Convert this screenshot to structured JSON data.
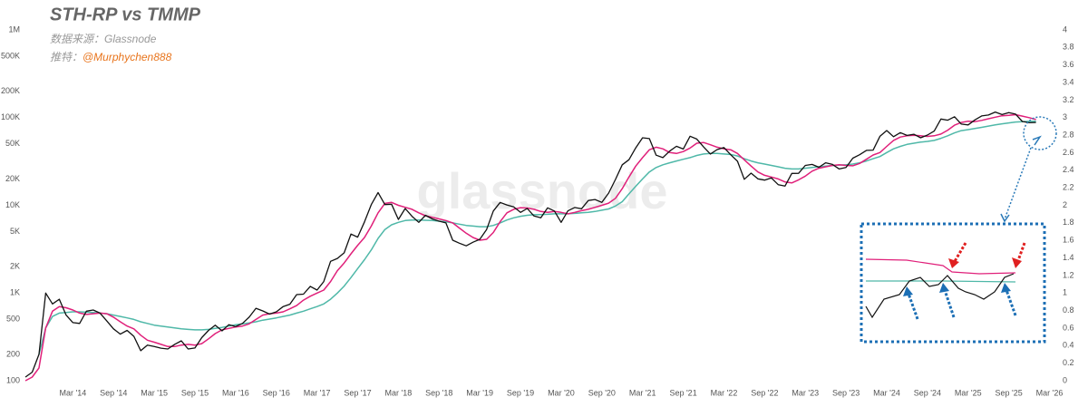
{
  "chart_data": {
    "type": "line",
    "title": "STH-RP vs TMMP",
    "annotations": [
      "数据来源：Glassnode",
      "推特：",
      "@Murphychen888",
      "glassnode"
    ],
    "log": true,
    "grid": false,
    "x": [
      "2013-08",
      "2013-09",
      "2013-10",
      "2013-11",
      "2013-12",
      "2014-01",
      "2014-02",
      "2014-03",
      "2014-04",
      "2014-05",
      "2014-06",
      "2014-07",
      "2014-08",
      "2014-09",
      "2014-10",
      "2014-11",
      "2014-12",
      "2015-01",
      "2015-02",
      "2015-03",
      "2015-04",
      "2015-05",
      "2015-06",
      "2015-07",
      "2015-08",
      "2015-09",
      "2015-10",
      "2015-11",
      "2015-12",
      "2016-01",
      "2016-02",
      "2016-03",
      "2016-04",
      "2016-05",
      "2016-06",
      "2016-07",
      "2016-08",
      "2016-09",
      "2016-10",
      "2016-11",
      "2016-12",
      "2017-01",
      "2017-02",
      "2017-03",
      "2017-04",
      "2017-05",
      "2017-06",
      "2017-07",
      "2017-08",
      "2017-09",
      "2017-10",
      "2017-11",
      "2017-12",
      "2018-01",
      "2018-02",
      "2018-03",
      "2018-04",
      "2018-05",
      "2018-06",
      "2018-07",
      "2018-08",
      "2018-09",
      "2018-10",
      "2018-11",
      "2018-12",
      "2019-01",
      "2019-02",
      "2019-03",
      "2019-04",
      "2019-05",
      "2019-06",
      "2019-07",
      "2019-08",
      "2019-09",
      "2019-10",
      "2019-11",
      "2019-12",
      "2020-01",
      "2020-02",
      "2020-03",
      "2020-04",
      "2020-05",
      "2020-06",
      "2020-07",
      "2020-08",
      "2020-09",
      "2020-10",
      "2020-11",
      "2020-12",
      "2021-01",
      "2021-02",
      "2021-03",
      "2021-04",
      "2021-05",
      "2021-06",
      "2021-07",
      "2021-08",
      "2021-09",
      "2021-10",
      "2021-11",
      "2021-12",
      "2022-01",
      "2022-02",
      "2022-03",
      "2022-04",
      "2022-05",
      "2022-06",
      "2022-07",
      "2022-08",
      "2022-09",
      "2022-10",
      "2022-11",
      "2022-12",
      "2023-01",
      "2023-02",
      "2023-03",
      "2023-04",
      "2023-05",
      "2023-06",
      "2023-07",
      "2023-08",
      "2023-09",
      "2023-10",
      "2023-11",
      "2023-12",
      "2024-01",
      "2024-02",
      "2024-03",
      "2024-04",
      "2024-05",
      "2024-06",
      "2024-07",
      "2024-08",
      "2024-09",
      "2024-10",
      "2024-11",
      "2024-12",
      "2025-01",
      "2025-02",
      "2025-03",
      "2025-04",
      "2025-05",
      "2025-06",
      "2025-07",
      "2025-08",
      "2025-09",
      "2025-10",
      "2025-11",
      "2025-12",
      "2026-01"
    ],
    "series": [
      {
        "color": "#4fb8a8",
        "values": [
          null,
          null,
          200,
          400,
          540,
          590,
          600,
          610,
          610,
          605,
          600,
          590,
          580,
          560,
          540,
          520,
          500,
          470,
          450,
          430,
          420,
          410,
          400,
          390,
          385,
          380,
          380,
          385,
          395,
          405,
          420,
          435,
          445,
          455,
          470,
          490,
          505,
          520,
          540,
          560,
          590,
          620,
          660,
          700,
          750,
          850,
          1000,
          1200,
          1500,
          1900,
          2400,
          3100,
          4200,
          5300,
          6000,
          6400,
          6700,
          6800,
          6800,
          6750,
          6700,
          6600,
          6500,
          6300,
          6100,
          5900,
          5800,
          5700,
          5700,
          5900,
          6300,
          6800,
          7200,
          7500,
          7700,
          7800,
          7850,
          7900,
          8000,
          8000,
          8000,
          8100,
          8200,
          8300,
          8500,
          8800,
          9100,
          9800,
          11000,
          13500,
          16500,
          20000,
          24000,
          27000,
          29000,
          30500,
          32000,
          33500,
          35000,
          37000,
          38500,
          39000,
          39000,
          38500,
          38000,
          36500,
          34000,
          32000,
          30500,
          29500,
          28500,
          27500,
          26500,
          26000,
          26000,
          26500,
          27000,
          27500,
          28000,
          28500,
          28800,
          29000,
          29500,
          30500,
          32000,
          34000,
          36000,
          40000,
          44000,
          47000,
          49500,
          51000,
          52500,
          53500,
          55000,
          58000,
          62000,
          67000,
          71000,
          73000,
          75000,
          77500,
          80000,
          82500,
          85000,
          87000,
          89000,
          90000,
          90500,
          91000
        ]
      },
      {
        "color": "#e0207a",
        "values": [
          100,
          110,
          140,
          400,
          620,
          700,
          680,
          640,
          590,
          570,
          580,
          590,
          580,
          530,
          470,
          420,
          390,
          330,
          290,
          275,
          260,
          245,
          245,
          255,
          260,
          255,
          265,
          300,
          345,
          380,
          395,
          410,
          420,
          445,
          500,
          560,
          580,
          590,
          610,
          660,
          720,
          830,
          920,
          1000,
          1080,
          1350,
          1800,
          2200,
          2800,
          3500,
          4300,
          5800,
          8200,
          10500,
          10800,
          10000,
          9500,
          9000,
          8200,
          7600,
          7300,
          7000,
          6700,
          6300,
          5500,
          4800,
          4300,
          4000,
          4100,
          4900,
          6500,
          8200,
          9000,
          9400,
          9300,
          9000,
          8500,
          8300,
          8500,
          8300,
          8000,
          8300,
          8700,
          9000,
          9500,
          10000,
          10600,
          12000,
          15500,
          21000,
          28000,
          35000,
          43000,
          46000,
          44000,
          40000,
          39000,
          41000,
          45000,
          51000,
          52000,
          49000,
          46000,
          44000,
          43000,
          39000,
          33000,
          28000,
          24000,
          22000,
          21000,
          20000,
          18500,
          18000,
          19500,
          21500,
          24500,
          26500,
          27500,
          28500,
          29000,
          28500,
          28200,
          30000,
          33500,
          37500,
          40000,
          47000,
          55000,
          60000,
          62000,
          63000,
          62000,
          61000,
          62000,
          65000,
          72000,
          82000,
          88000,
          91000,
          90000,
          93000,
          97000,
          101000,
          105000,
          106000,
          108000,
          104000,
          100000,
          95000
        ]
      },
      {
        "color": "#111111",
        "values": [
          110,
          125,
          200,
          1000,
          750,
          850,
          560,
          460,
          450,
          620,
          640,
          590,
          480,
          390,
          340,
          375,
          320,
          220,
          255,
          245,
          235,
          230,
          260,
          285,
          230,
          236,
          310,
          375,
          430,
          370,
          435,
          415,
          450,
          530,
          670,
          625,
          575,
          610,
          700,
          745,
          960,
          970,
          1190,
          1080,
          1350,
          2300,
          2480,
          2870,
          4700,
          4340,
          6470,
          10200,
          14000,
          10200,
          10300,
          6900,
          9200,
          7500,
          6400,
          7700,
          7000,
          6600,
          6300,
          4000,
          3700,
          3450,
          3800,
          4100,
          5300,
          8600,
          10800,
          10100,
          9600,
          8300,
          9200,
          7550,
          7200,
          9350,
          8600,
          6400,
          8650,
          9450,
          9140,
          11350,
          11650,
          10780,
          13800,
          19700,
          29000,
          33100,
          45200,
          58900,
          57700,
          37300,
          35000,
          41500,
          47100,
          43800,
          61300,
          57000,
          46300,
          38500,
          43200,
          45500,
          37700,
          31800,
          19800,
          23300,
          20050,
          19400,
          20500,
          17200,
          16550,
          23100,
          23150,
          28500,
          29250,
          27200,
          30500,
          29250,
          25950,
          26950,
          34500,
          37700,
          42300,
          42600,
          61200,
          71300,
          60600,
          67500,
          62700,
          64600,
          58900,
          63300,
          70200,
          96400,
          93400,
          102400,
          84400,
          82500,
          94200,
          104600,
          107100,
          115700,
          108200,
          114000,
          109600,
          90400,
          87500,
          88000
        ]
      }
    ],
    "xlim": [
      "2013-08",
      "2026-04"
    ],
    "xticks": [
      {
        "value": "2014-03",
        "label": "Mar '14"
      },
      {
        "value": "2014-09",
        "label": "Sep '14"
      },
      {
        "value": "2015-03",
        "label": "Mar '15"
      },
      {
        "value": "2015-09",
        "label": "Sep '15"
      },
      {
        "value": "2016-03",
        "label": "Mar '16"
      },
      {
        "value": "2016-09",
        "label": "Sep '16"
      },
      {
        "value": "2017-03",
        "label": "Mar '17"
      },
      {
        "value": "2017-09",
        "label": "Sep '17"
      },
      {
        "value": "2018-03",
        "label": "Mar '18"
      },
      {
        "value": "2018-09",
        "label": "Sep '18"
      },
      {
        "value": "2019-03",
        "label": "Mar '19"
      },
      {
        "value": "2019-09",
        "label": "Sep '19"
      },
      {
        "value": "2020-03",
        "label": "Mar '20"
      },
      {
        "value": "2020-09",
        "label": "Sep '20"
      },
      {
        "value": "2021-03",
        "label": "Mar '21"
      },
      {
        "value": "2021-09",
        "label": "Sep '21"
      },
      {
        "value": "2022-03",
        "label": "Mar '22"
      },
      {
        "value": "2022-09",
        "label": "Sep '22"
      },
      {
        "value": "2023-03",
        "label": "Mar '23"
      },
      {
        "value": "2023-09",
        "label": "Sep '23"
      },
      {
        "value": "2024-03",
        "label": "Mar '24"
      },
      {
        "value": "2024-09",
        "label": "Sep '24"
      },
      {
        "value": "2025-03",
        "label": "Mar '25"
      },
      {
        "value": "2025-09",
        "label": "Sep '25"
      },
      {
        "value": "2026-03",
        "label": "Mar '26"
      }
    ],
    "ylim": [
      100,
      1000000
    ],
    "yticks": [
      100,
      200,
      500,
      {
        "value": 1000,
        "label": "1K"
      },
      {
        "value": 2000,
        "label": "2K"
      },
      {
        "value": 5000,
        "label": "5K"
      },
      {
        "value": 10000,
        "label": "10K"
      },
      {
        "value": 20000,
        "label": "20K"
      },
      {
        "value": 50000,
        "label": "50K"
      },
      {
        "value": 100000,
        "label": "100K"
      },
      {
        "value": 200000,
        "label": "200K"
      },
      {
        "value": 500000,
        "label": "500K"
      },
      {
        "value": 1000000,
        "label": "1M"
      }
    ],
    "y2lim": [
      0,
      4
    ],
    "y2ticks": [
      0,
      0.2,
      0.4,
      0.6,
      0.8,
      1,
      1.2,
      1.4,
      1.6,
      1.8,
      2,
      2.2,
      2.4,
      2.6,
      2.8,
      3,
      3.2,
      3.4,
      3.6,
      3.8,
      4
    ]
  }
}
